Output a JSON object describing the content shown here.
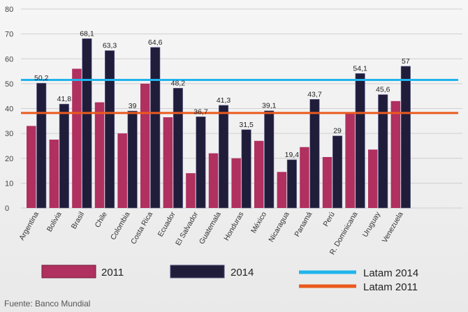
{
  "chart_data": {
    "type": "bar",
    "title": "",
    "xlabel": "",
    "ylabel": "",
    "ylim": [
      0,
      80
    ],
    "yticks": [
      0,
      10,
      20,
      30,
      40,
      50,
      60,
      70,
      80
    ],
    "grid": true,
    "legend_position": "bottom",
    "categories": [
      "Argentina",
      "Bolivia",
      "Brasil",
      "Chile",
      "Colombia",
      "Costa Rica",
      "Ecuador",
      "El Salvador",
      "Guatemala",
      "Honduras",
      "México",
      "Nicaragua",
      "Panamá",
      "Perú",
      "R. Dominicana",
      "Uruguay",
      "Venezuela"
    ],
    "series": [
      {
        "name": "2011",
        "color": "#b0305f",
        "values": [
          33,
          27.5,
          56,
          42.5,
          30,
          50,
          36.5,
          14,
          22,
          20,
          27,
          14.5,
          24.5,
          20.5,
          38,
          23.5,
          43
        ]
      },
      {
        "name": "2014",
        "color": "#1f1d3a",
        "values": [
          50.2,
          41.8,
          68.1,
          63.3,
          39,
          64.6,
          48.2,
          36.7,
          41.3,
          31.5,
          39.1,
          19.4,
          43.7,
          29,
          54.1,
          45.6,
          57
        ],
        "labels": [
          "50,2",
          "41,8",
          "68,1",
          "63,3",
          "39",
          "64,6",
          "48,2",
          "36,7",
          "41,3",
          "31,5",
          "39,1",
          "19,4",
          "43,7",
          "29",
          "54,1",
          "45,6",
          "57"
        ]
      }
    ],
    "reference_lines": [
      {
        "name": "Latam 2014",
        "value": 51.5,
        "color": "#20b4ec"
      },
      {
        "name": "Latam 2011",
        "value": 38.2,
        "color": "#ea5a1e"
      }
    ]
  },
  "source": "Fuente: Banco Mundial"
}
